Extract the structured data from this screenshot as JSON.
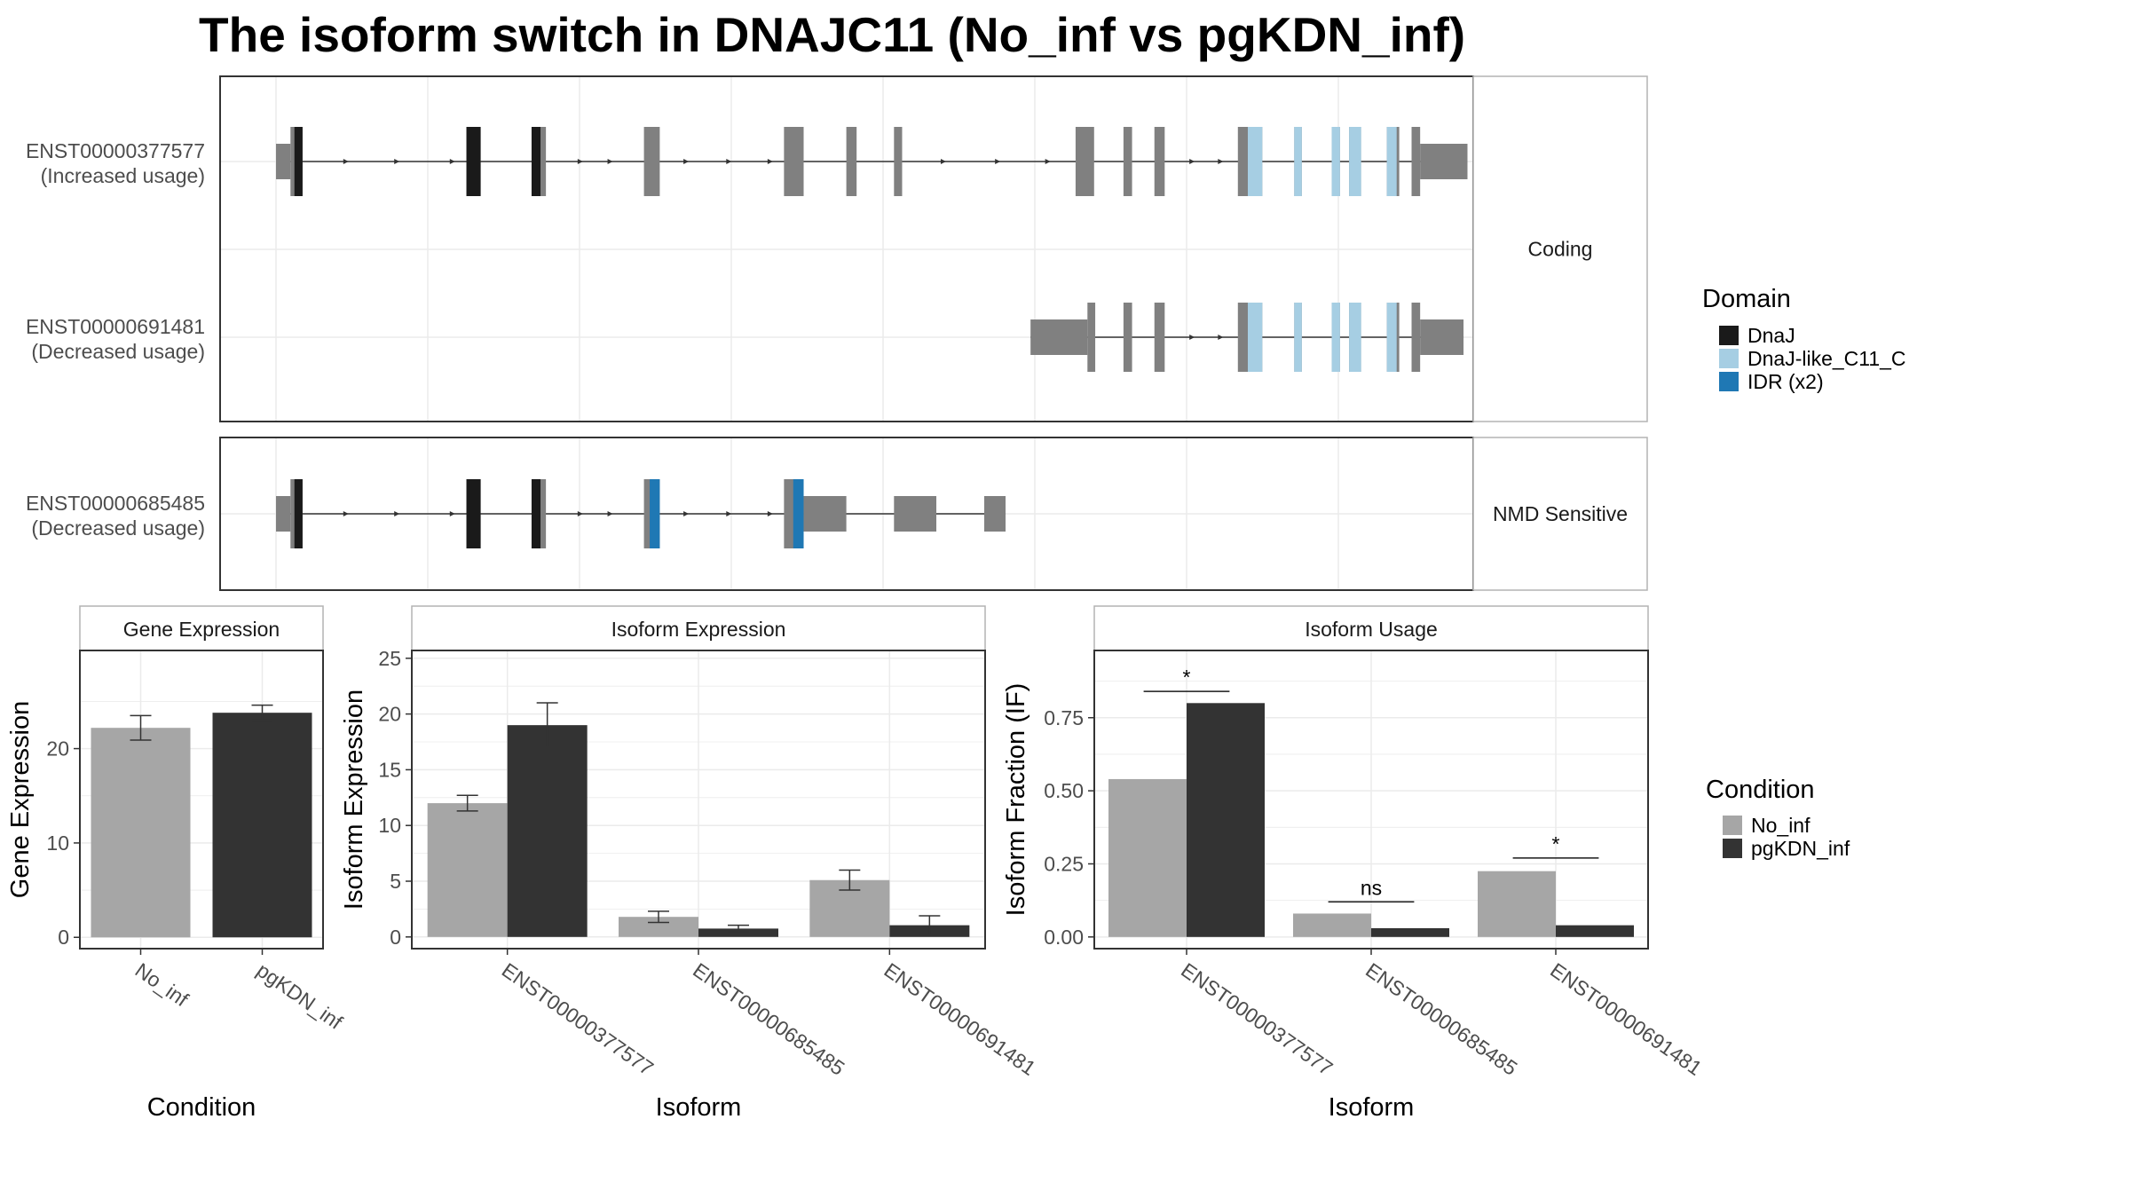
{
  "title": "The isoform switch in DNAJC11 (No_inf vs pgKDN_inf)",
  "colors": {
    "exon": "#808080",
    "intron": "#333333",
    "panel_border": "#333333",
    "strip_border": "#b3b3b3",
    "strip_fill": "#ffffff",
    "grid": "#ebebeb",
    "domain_DnaJ": "#1a1a1a",
    "domain_DnaJ_like_C11_C": "#a6cee3",
    "domain_IDR": "#1f78b4",
    "cond_No_inf": "#a6a6a6",
    "cond_pgKDN_inf": "#333333"
  },
  "transcript_panels": [
    {
      "strip_label": "Coding",
      "transcripts": [
        {
          "id": "ENST00000377577",
          "usage": "(Increased usage)",
          "exons": [
            {
              "s": 0.0,
              "e": 12.8,
              "coding": false
            },
            {
              "s": 12.8,
              "e": 23.5,
              "coding": true,
              "domain": "DnaJ",
              "domain_from": 16.3
            },
            {
              "s": 168.6,
              "e": 181.2,
              "coding": true,
              "domain": "DnaJ"
            },
            {
              "s": 226.3,
              "e": 239.0,
              "coding": true,
              "domain": "DnaJ",
              "domain_to": 234.2
            },
            {
              "s": 325.8,
              "e": 339.8,
              "coding": true
            },
            {
              "s": 449.8,
              "e": 467.2,
              "coding": true
            },
            {
              "s": 505.0,
              "e": 514.1,
              "coding": true
            },
            {
              "s": 547.2,
              "e": 554.4,
              "coding": true
            },
            {
              "s": 708.0,
              "e": 724.4,
              "coding": true
            },
            {
              "s": 750.4,
              "e": 758.0,
              "coding": true
            },
            {
              "s": 777.8,
              "e": 786.9,
              "coding": true
            },
            {
              "s": 851.7,
              "e": 873.3,
              "coding": true,
              "domain": "DnaJ-like_C11_C",
              "domain_from": 860.5
            },
            {
              "s": 901.6,
              "e": 908.3,
              "coding": true,
              "domain": "DnaJ-like_C11_C"
            },
            {
              "s": 934.8,
              "e": 942.1,
              "coding": true,
              "domain": "DnaJ-like_C11_C"
            },
            {
              "s": 950.2,
              "e": 960.8,
              "coding": true,
              "domain": "DnaJ-like_C11_C"
            },
            {
              "s": 983.6,
              "e": 994.6,
              "coding": true,
              "domain": "DnaJ-like_C11_C",
              "domain_to": 992.3
            },
            {
              "s": 1005.5,
              "e": 1013.1,
              "coding": true
            },
            {
              "s": 1013.1,
              "e": 1055.0,
              "coding": false
            }
          ],
          "arrows": [
            63.5,
            108.6,
            157.8,
            271.0,
            297.5,
            364.7,
            402.6,
            439.2,
            592.5,
            640.6,
            685.0,
            812.7,
            838.0
          ]
        },
        {
          "id": "ENST00000691481",
          "usage": "(Decreased usage)",
          "exons": [
            {
              "s": 668.1,
              "e": 718.5,
              "coding": false
            },
            {
              "s": 718.5,
              "e": 725.4,
              "coding": true
            },
            {
              "s": 750.4,
              "e": 758.0,
              "coding": true
            },
            {
              "s": 777.8,
              "e": 786.9,
              "coding": true
            },
            {
              "s": 851.7,
              "e": 873.3,
              "coding": true,
              "domain": "DnaJ-like_C11_C",
              "domain_from": 860.5
            },
            {
              "s": 901.6,
              "e": 908.3,
              "coding": true,
              "domain": "DnaJ-like_C11_C"
            },
            {
              "s": 934.8,
              "e": 942.1,
              "coding": true,
              "domain": "DnaJ-like_C11_C"
            },
            {
              "s": 950.2,
              "e": 960.8,
              "coding": true,
              "domain": "DnaJ-like_C11_C"
            },
            {
              "s": 983.6,
              "e": 994.6,
              "coding": true,
              "domain": "DnaJ-like_C11_C",
              "domain_to": 992.3
            },
            {
              "s": 1005.5,
              "e": 1013.1,
              "coding": true
            },
            {
              "s": 1013.1,
              "e": 1051.5,
              "coding": false
            }
          ],
          "arrows": [
            812.7,
            838.0
          ]
        }
      ]
    },
    {
      "strip_label": "NMD Sensitive",
      "transcripts": [
        {
          "id": "ENST00000685485",
          "usage": "(Decreased usage)",
          "exons": [
            {
              "s": 0.0,
              "e": 12.8,
              "coding": false
            },
            {
              "s": 12.8,
              "e": 23.5,
              "coding": true,
              "domain": "DnaJ",
              "domain_from": 16.3
            },
            {
              "s": 168.6,
              "e": 181.2,
              "coding": true,
              "domain": "DnaJ"
            },
            {
              "s": 226.3,
              "e": 239.0,
              "coding": true,
              "domain": "DnaJ",
              "domain_to": 234.2
            },
            {
              "s": 325.8,
              "e": 339.8,
              "coding": true,
              "domain": "IDR",
              "domain_from": 330.9
            },
            {
              "s": 449.8,
              "e": 467.2,
              "coding": true,
              "domain": "IDR",
              "domain_from": 458.0
            },
            {
              "s": 467.2,
              "e": 505.0,
              "coding": false
            },
            {
              "s": 547.2,
              "e": 584.7,
              "coding": false
            },
            {
              "s": 627.1,
              "e": 646.0,
              "coding": false
            }
          ],
          "arrows": [
            63.5,
            108.6,
            157.8,
            271.0,
            297.5,
            364.7,
            402.6,
            439.2
          ]
        }
      ]
    }
  ],
  "domain_legend": {
    "title": "Domain",
    "items": [
      {
        "label": "DnaJ",
        "color": "#1a1a1a"
      },
      {
        "label": "DnaJ-like_C11_C",
        "color": "#a6cee3"
      },
      {
        "label": "IDR (x2)",
        "color": "#1f78b4"
      }
    ]
  },
  "condition_legend": {
    "title": "Condition",
    "items": [
      {
        "label": "No_inf",
        "color": "#a6a6a6"
      },
      {
        "label": "pgKDN_inf",
        "color": "#333333"
      }
    ]
  },
  "chart_data": [
    {
      "type": "bar",
      "strip": "Gene Expression",
      "xlabel": "Condition",
      "ylabel": "Gene Expression",
      "categories": [
        "No_inf",
        "pgKDN_inf"
      ],
      "values": [
        22.2,
        23.8
      ],
      "errors": [
        1.3,
        0.8
      ],
      "yticks": [
        0,
        10,
        20
      ],
      "ylim": [
        -1.2,
        30.4
      ],
      "grid": true
    },
    {
      "type": "bar",
      "strip": "Isoform Expression",
      "xlabel": "Isoform",
      "ylabel": "Isoform Expression",
      "categories": [
        "ENST00000377577",
        "ENST00000685485",
        "ENST00000691481"
      ],
      "series": [
        {
          "name": "No_inf",
          "values": [
            12.0,
            1.8,
            5.1
          ],
          "errors": [
            0.7,
            0.5,
            0.9
          ]
        },
        {
          "name": "pgKDN_inf",
          "values": [
            19.0,
            0.75,
            1.05
          ],
          "errors": [
            2.0,
            0.3,
            0.85
          ]
        }
      ],
      "yticks": [
        0,
        5,
        10,
        15,
        20,
        25
      ],
      "ylim": [
        -1.05,
        25.7
      ],
      "grid": true
    },
    {
      "type": "bar",
      "strip": "Isoform Usage",
      "xlabel": "Isoform",
      "ylabel": "Isoform Fraction (IF)",
      "categories": [
        "ENST00000377577",
        "ENST00000685485",
        "ENST00000691481"
      ],
      "series": [
        {
          "name": "No_inf",
          "values": [
            0.54,
            0.08,
            0.225
          ]
        },
        {
          "name": "pgKDN_inf",
          "values": [
            0.8,
            0.03,
            0.04
          ]
        }
      ],
      "significance": [
        {
          "label": "*",
          "y": 0.84
        },
        {
          "label": "ns",
          "y": 0.12
        },
        {
          "label": "*",
          "y": 0.27
        }
      ],
      "yticks": [
        0.0,
        0.25,
        0.5,
        0.75
      ],
      "ytick_labels": [
        "0.00",
        "0.25",
        "0.50",
        "0.75"
      ],
      "ylim": [
        -0.04,
        0.98
      ],
      "grid": true
    }
  ]
}
